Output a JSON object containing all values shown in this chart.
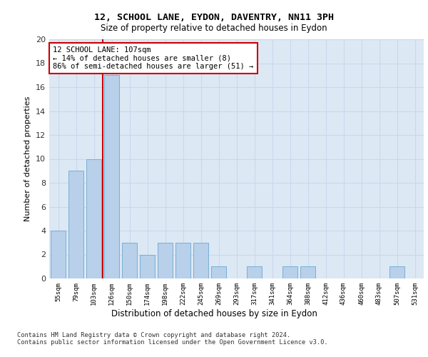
{
  "title": "12, SCHOOL LANE, EYDON, DAVENTRY, NN11 3PH",
  "subtitle": "Size of property relative to detached houses in Eydon",
  "xlabel": "Distribution of detached houses by size in Eydon",
  "ylabel": "Number of detached properties",
  "categories": [
    "55sqm",
    "79sqm",
    "103sqm",
    "126sqm",
    "150sqm",
    "174sqm",
    "198sqm",
    "222sqm",
    "245sqm",
    "269sqm",
    "293sqm",
    "317sqm",
    "341sqm",
    "364sqm",
    "388sqm",
    "412sqm",
    "436sqm",
    "460sqm",
    "483sqm",
    "507sqm",
    "531sqm"
  ],
  "values": [
    4,
    9,
    10,
    17,
    3,
    2,
    3,
    3,
    3,
    1,
    0,
    1,
    0,
    1,
    1,
    0,
    0,
    0,
    0,
    1,
    0
  ],
  "bar_color": "#b8d0ea",
  "bar_edge_color": "#7aaed4",
  "annotation_text": "12 SCHOOL LANE: 107sqm\n← 14% of detached houses are smaller (8)\n86% of semi-detached houses are larger (51) →",
  "annotation_box_color": "#ffffff",
  "annotation_box_edge": "#cc0000",
  "vline_color": "#cc0000",
  "vline_x": 2.5,
  "ylim": [
    0,
    20
  ],
  "yticks": [
    0,
    2,
    4,
    6,
    8,
    10,
    12,
    14,
    16,
    18,
    20
  ],
  "grid_color": "#c8d8ec",
  "bg_color": "#dde8f5",
  "footer": "Contains HM Land Registry data © Crown copyright and database right 2024.\nContains public sector information licensed under the Open Government Licence v3.0."
}
